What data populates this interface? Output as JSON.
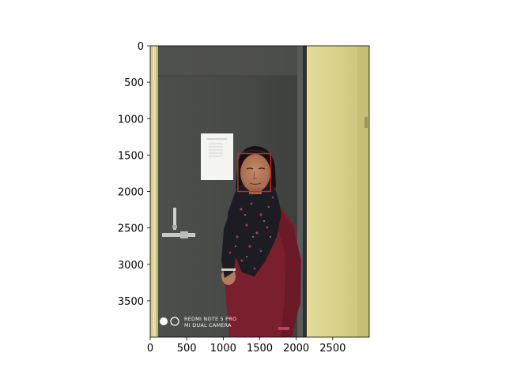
{
  "figure": {
    "image_width": 3000,
    "image_height": 4000,
    "x_ticks": [
      0,
      500,
      1000,
      1500,
      2000,
      2500
    ],
    "y_ticks": [
      0,
      500,
      1000,
      1500,
      2000,
      2500,
      3000,
      3500
    ],
    "face_box": {
      "x0": 1200,
      "y0": 1480,
      "x1": 1650,
      "y1": 2000,
      "color": "#d92020"
    },
    "watermark": {
      "line1": "REDMI NOTE 5 PRO",
      "line2": "MI DUAL CAMERA"
    }
  },
  "colors": {
    "wall": "#d8d28a",
    "door": "#4a4c4a",
    "door_frame": "#3a3c3a",
    "shirt": "#7a1f2e",
    "scarf": "#1d1c22",
    "skin": "#b67a5d",
    "hair": "#151013",
    "paper": "#f4f4f1"
  }
}
